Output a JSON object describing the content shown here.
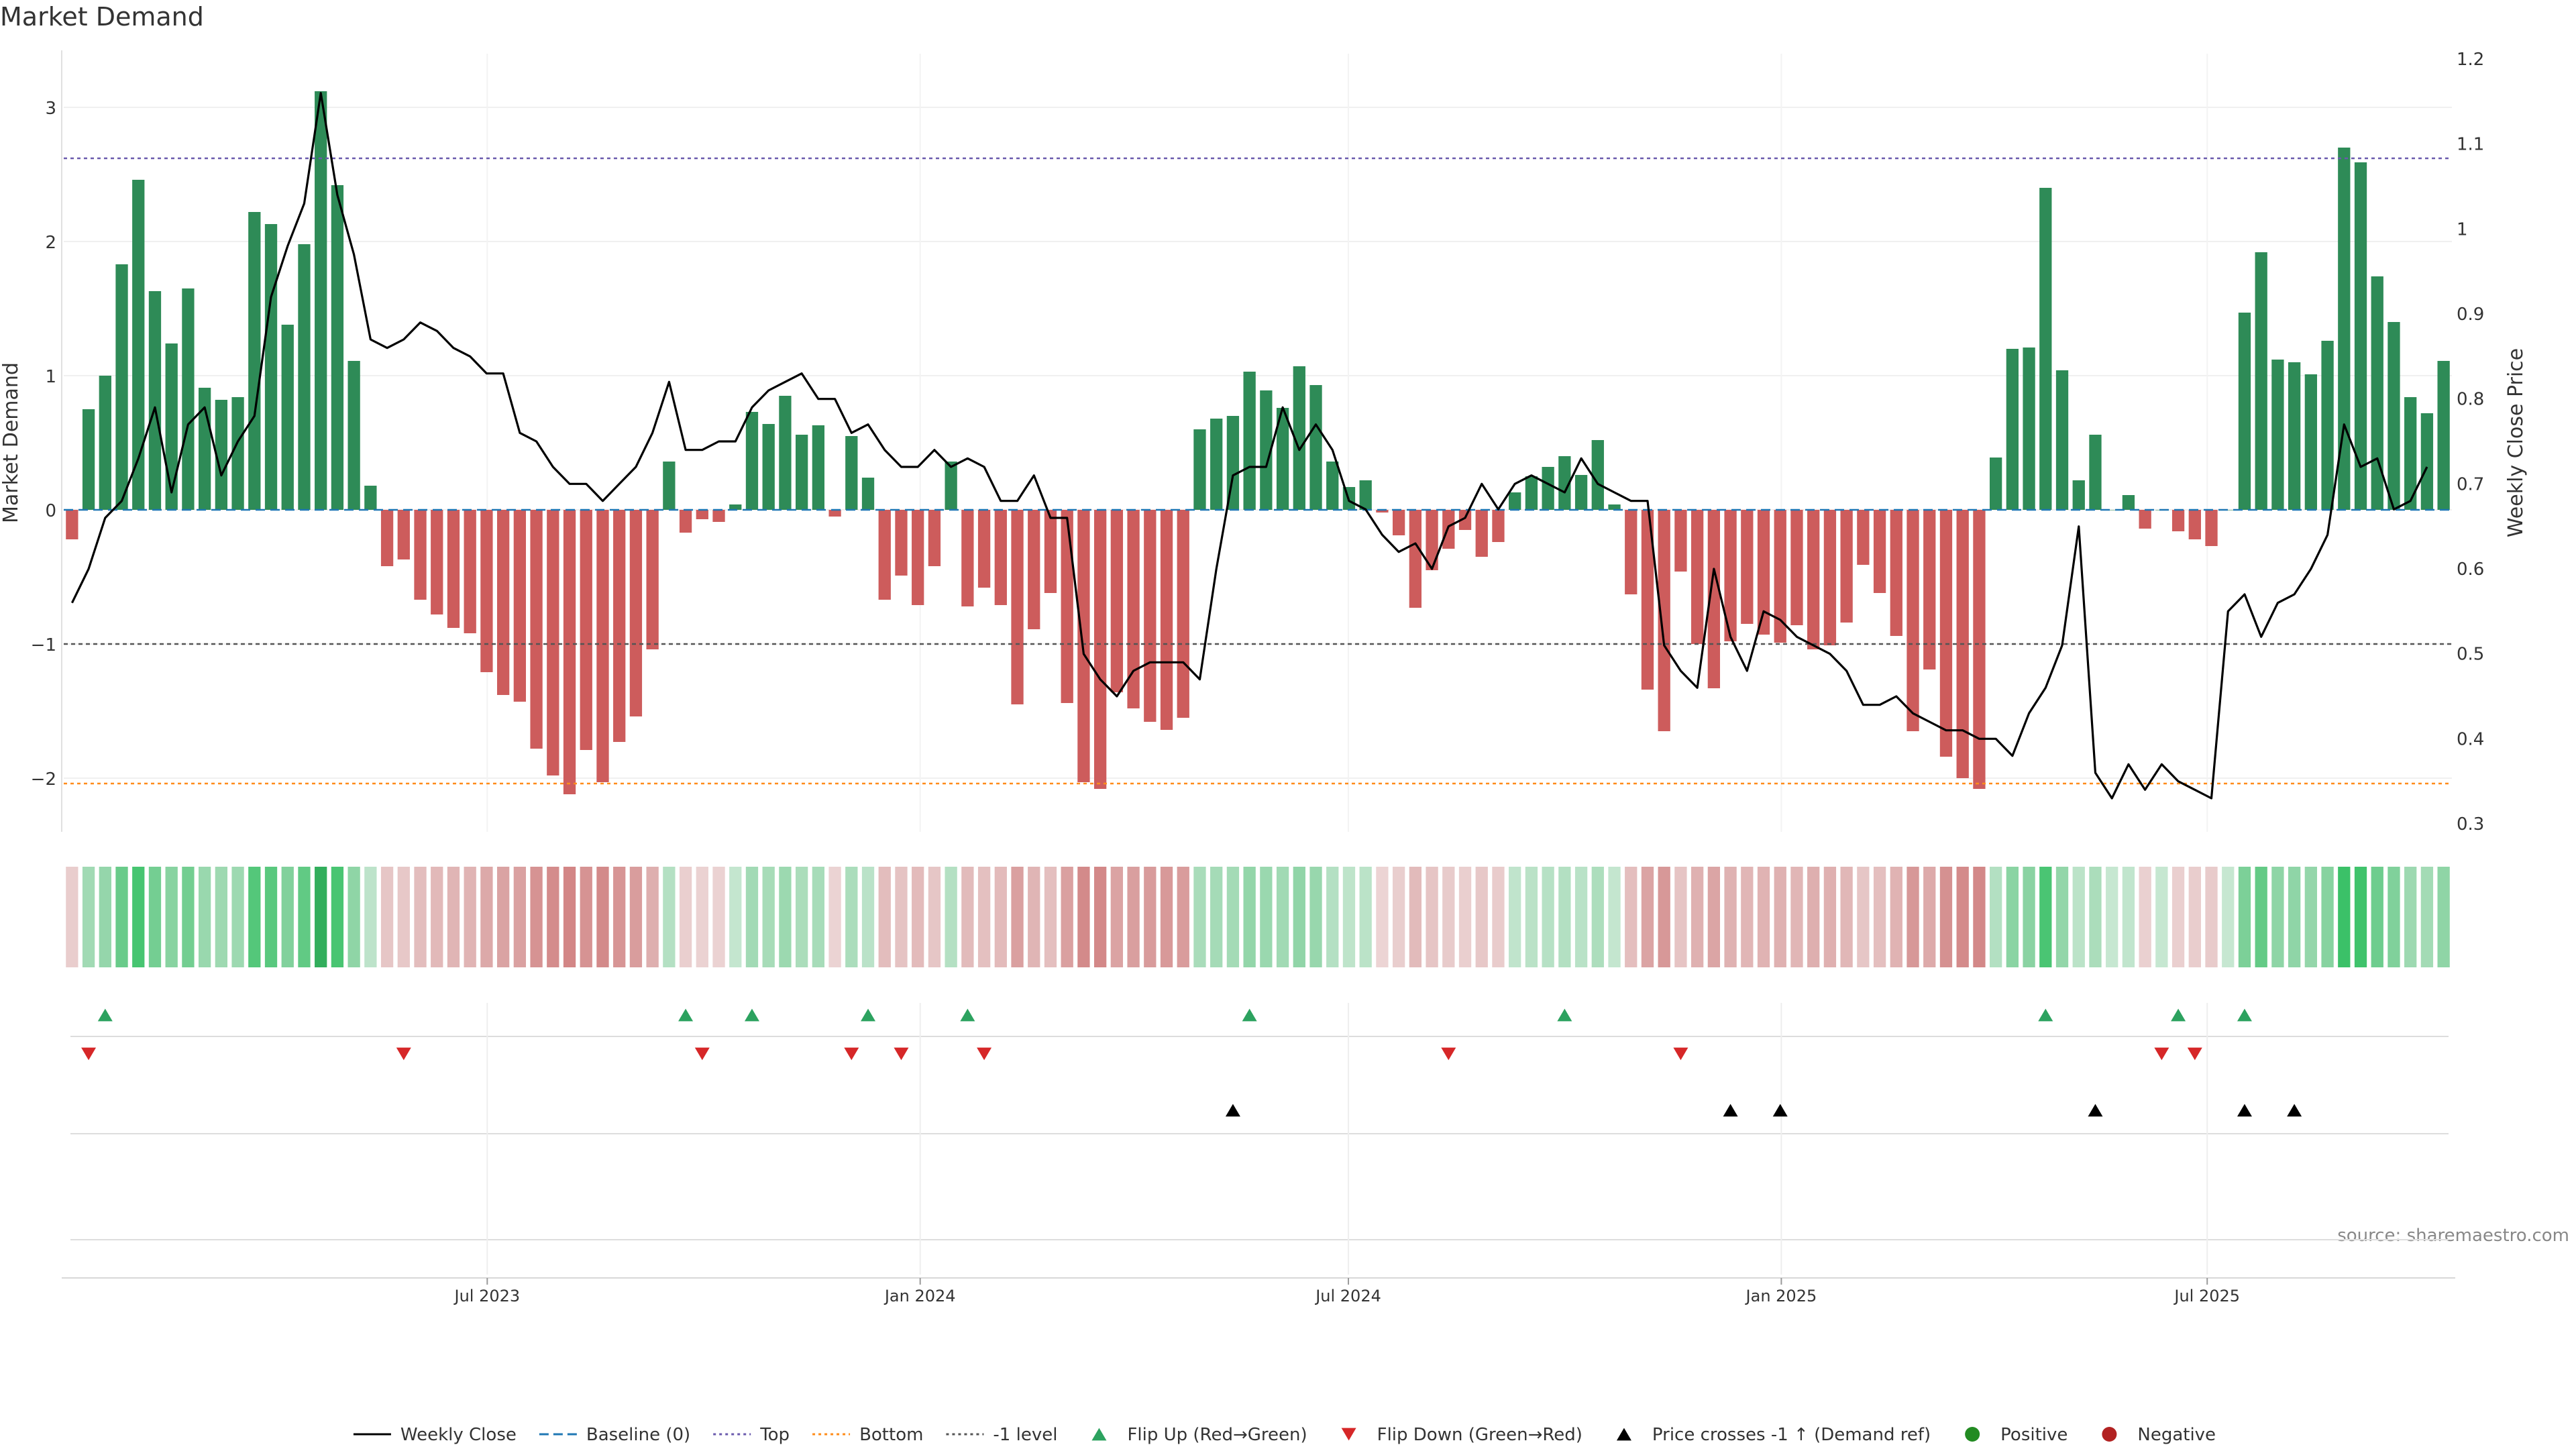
{
  "chart_data": {
    "type": "bar",
    "title": "Market Demand",
    "ylabel_left": "Market Demand",
    "ylabel_right": "Weekly Close Price",
    "y_left_range": [
      -2.4,
      3.4
    ],
    "y_right_range": [
      0.3,
      1.2
    ],
    "y_left_ticks": [
      "3",
      "2",
      "1",
      "0",
      "−1",
      "−2"
    ],
    "y_right_ticks": [
      "1.2",
      "1.1",
      "1",
      "0.9",
      "0.8",
      "0.7",
      "0.6",
      "0.5",
      "0.4",
      "0.3"
    ],
    "x_start": "2023-01-02",
    "x_end": "2025-10-13",
    "x_ticks": [
      {
        "date": "2023-07-01",
        "label": "Jul 2023"
      },
      {
        "date": "2024-01-01",
        "label": "Jan 2024"
      },
      {
        "date": "2024-07-01",
        "label": "Jul 2024"
      },
      {
        "date": "2025-01-01",
        "label": "Jan 2025"
      },
      {
        "date": "2025-07-01",
        "label": "Jul 2025"
      }
    ],
    "reference_lines": {
      "top": 2.62,
      "bottom": -2.04,
      "minus_one": -1,
      "baseline": 0
    },
    "demand": [
      -0.22,
      0.75,
      1.0,
      1.83,
      2.46,
      1.63,
      1.24,
      1.65,
      0.91,
      0.82,
      0.84,
      2.22,
      2.13,
      1.38,
      1.98,
      3.12,
      2.42,
      1.11,
      0.18,
      -0.42,
      -0.37,
      -0.67,
      -0.78,
      -0.88,
      -0.92,
      -1.21,
      -1.38,
      -1.43,
      -1.78,
      -1.98,
      -2.12,
      -1.79,
      -2.03,
      -1.73,
      -1.54,
      -1.04,
      0.36,
      -0.17,
      -0.07,
      -0.09,
      0.04,
      0.73,
      0.64,
      0.85,
      0.56,
      0.63,
      -0.05,
      0.55,
      0.24,
      -0.67,
      -0.49,
      -0.71,
      -0.42,
      0.36,
      -0.72,
      -0.58,
      -0.71,
      -1.45,
      -0.89,
      -0.62,
      -1.44,
      -2.03,
      -2.08,
      -1.36,
      -1.48,
      -1.58,
      -1.64,
      -1.55,
      0.6,
      0.68,
      0.7,
      1.03,
      0.89,
      0.76,
      1.07,
      0.93,
      0.36,
      0.17,
      0.22,
      -0.02,
      -0.19,
      -0.73,
      -0.45,
      -0.29,
      -0.15,
      -0.35,
      -0.24,
      0.13,
      0.25,
      0.32,
      0.4,
      0.26,
      0.52,
      0.04,
      -0.63,
      -1.34,
      -1.65,
      -0.46,
      -1.0,
      -1.33,
      -0.98,
      -0.85,
      -0.93,
      -0.99,
      -0.86,
      -1.04,
      -1.01,
      -0.84,
      -0.41,
      -0.62,
      -0.94,
      -1.65,
      -1.19,
      -1.84,
      -2.0,
      -2.08,
      0.39,
      1.2,
      1.21,
      2.4,
      1.04,
      0.22,
      0.56,
      0.0,
      0.11,
      -0.14,
      0.0,
      -0.16,
      -0.22,
      -0.27,
      0.0,
      1.47,
      1.92,
      1.12,
      1.1,
      1.01,
      1.26,
      2.7,
      2.59,
      1.74,
      1.4,
      0.84,
      0.72,
      1.11
    ],
    "weekly_close": [
      0.56,
      0.6,
      0.66,
      0.68,
      0.73,
      0.79,
      0.69,
      0.77,
      0.79,
      0.71,
      0.75,
      0.78,
      0.92,
      0.98,
      1.03,
      1.16,
      1.04,
      0.97,
      0.87,
      0.86,
      0.87,
      0.89,
      0.88,
      0.86,
      0.85,
      0.83,
      0.83,
      0.76,
      0.75,
      0.72,
      0.7,
      0.7,
      0.68,
      0.7,
      0.72,
      0.76,
      0.82,
      0.74,
      0.74,
      0.75,
      0.75,
      0.79,
      0.81,
      0.82,
      0.83,
      0.8,
      0.8,
      0.76,
      0.77,
      0.74,
      0.72,
      0.72,
      0.74,
      0.72,
      0.73,
      0.72,
      0.68,
      0.68,
      0.71,
      0.66,
      0.66,
      0.5,
      0.47,
      0.45,
      0.48,
      0.49,
      0.49,
      0.49,
      0.47,
      0.6,
      0.71,
      0.72,
      0.72,
      0.79,
      0.74,
      0.77,
      0.74,
      0.68,
      0.67,
      0.64,
      0.62,
      0.63,
      0.6,
      0.65,
      0.66,
      0.7,
      0.67,
      0.7,
      0.71,
      0.7,
      0.69,
      0.73,
      0.7,
      0.69,
      0.68,
      0.68,
      0.51,
      0.48,
      0.46,
      0.6,
      0.52,
      0.48,
      0.55,
      0.54,
      0.52,
      0.51,
      0.5,
      0.48,
      0.44,
      0.44,
      0.45,
      0.43,
      0.42,
      0.41,
      0.41,
      0.4,
      0.4,
      0.38,
      0.43,
      0.46,
      0.51,
      0.65,
      0.36,
      0.33,
      0.37,
      0.34,
      0.37,
      0.35,
      0.34,
      0.33,
      0.55,
      0.57,
      0.52,
      0.56,
      0.57,
      0.6,
      0.64,
      0.77,
      0.72,
      0.73,
      0.67,
      0.68,
      0.72
    ],
    "flip_up_weeks": [
      2,
      37,
      41,
      48,
      54,
      71,
      90,
      119,
      127,
      131
    ],
    "flip_down_weeks": [
      1,
      20,
      38,
      47,
      50,
      55,
      83,
      97,
      126,
      128
    ],
    "price_cross_weeks": [
      70,
      100,
      103,
      122,
      131,
      134
    ],
    "legend": [
      {
        "label": "Weekly Close",
        "kind": "solid-line",
        "color": "#000000"
      },
      {
        "label": "Baseline (0)",
        "kind": "dash-line",
        "color": "#1f77b4"
      },
      {
        "label": "Top",
        "kind": "dot-line",
        "color": "#6a5aad"
      },
      {
        "label": "Bottom",
        "kind": "dot-line",
        "color": "#ff8c1a"
      },
      {
        "label": "-1 level",
        "kind": "dot-line",
        "color": "#555555"
      },
      {
        "label": "Flip Up (Red→Green)",
        "kind": "tri-up",
        "color": "#2ca25f"
      },
      {
        "label": "Flip Down (Green→Red)",
        "kind": "tri-down",
        "color": "#d62728"
      },
      {
        "label": "Price crosses -1 ↑ (Demand ref)",
        "kind": "tri-up",
        "color": "#000000"
      },
      {
        "label": "Positive",
        "kind": "dot",
        "color": "#228b22"
      },
      {
        "label": "Negative",
        "kind": "dot",
        "color": "#b22222"
      }
    ],
    "source": "source: sharemaestro.com",
    "colors": {
      "positive": "#2e8b57",
      "negative": "#cd5c5c",
      "text": "#333333"
    }
  }
}
